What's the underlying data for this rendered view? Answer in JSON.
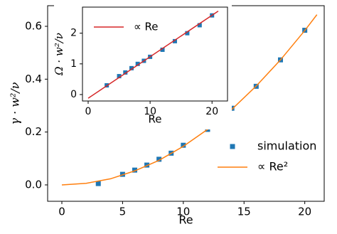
{
  "chart_data": [
    {
      "type": "scatter",
      "xlabel": "Re",
      "ylabel": "γ · w²/ν",
      "xlim": [
        -1.17,
        21.6
      ],
      "ylim": [
        -0.062,
        0.678
      ],
      "xticks": [
        0,
        5,
        10,
        15,
        20
      ],
      "yticks": [
        {
          "value": 0,
          "label": "0.0"
        },
        0.2,
        0.4,
        0.6
      ],
      "legend": "lower right",
      "series": [
        {
          "name": "simulation",
          "color": "#1f77b4",
          "mode": "markers",
          "x": [
            3,
            5,
            6,
            7,
            8,
            9,
            10,
            12,
            14,
            16,
            18,
            20
          ],
          "values": [
            0.005,
            0.04,
            0.056,
            0.075,
            0.097,
            0.12,
            0.15,
            0.21,
            0.29,
            0.373,
            0.473,
            0.585
          ]
        },
        {
          "name": "∝ Re²",
          "color": "#ff7f0e",
          "mode": "line",
          "x": [
            0,
            2,
            4,
            6,
            8,
            10,
            12,
            14,
            16,
            18,
            20,
            21
          ],
          "values": [
            0,
            0.006,
            0.023,
            0.053,
            0.093,
            0.146,
            0.21,
            0.286,
            0.374,
            0.473,
            0.584,
            0.644
          ]
        }
      ]
    },
    {
      "type": "scatter",
      "xlabel": "Re",
      "ylabel": "Ω · w²/ν",
      "xlim": [
        -0.92,
        22.5
      ],
      "ylim": [
        -0.21,
        2.85
      ],
      "xticks": [
        0,
        10,
        20
      ],
      "yticks": [
        0,
        1,
        2
      ],
      "legend": "upper left",
      "series": [
        {
          "color": "#1f77b4",
          "mode": "markers",
          "x": [
            3,
            5,
            6,
            7,
            8,
            9,
            10,
            12,
            14,
            16,
            18,
            20
          ],
          "values": [
            0.3,
            0.6,
            0.72,
            0.86,
            1.0,
            1.1,
            1.23,
            1.46,
            1.74,
            2.0,
            2.26,
            2.58
          ]
        },
        {
          "name": "∝ Re",
          "color": "#d62728",
          "mode": "line",
          "x": [
            0,
            21
          ],
          "values": [
            -0.12,
            2.72
          ]
        }
      ]
    }
  ]
}
